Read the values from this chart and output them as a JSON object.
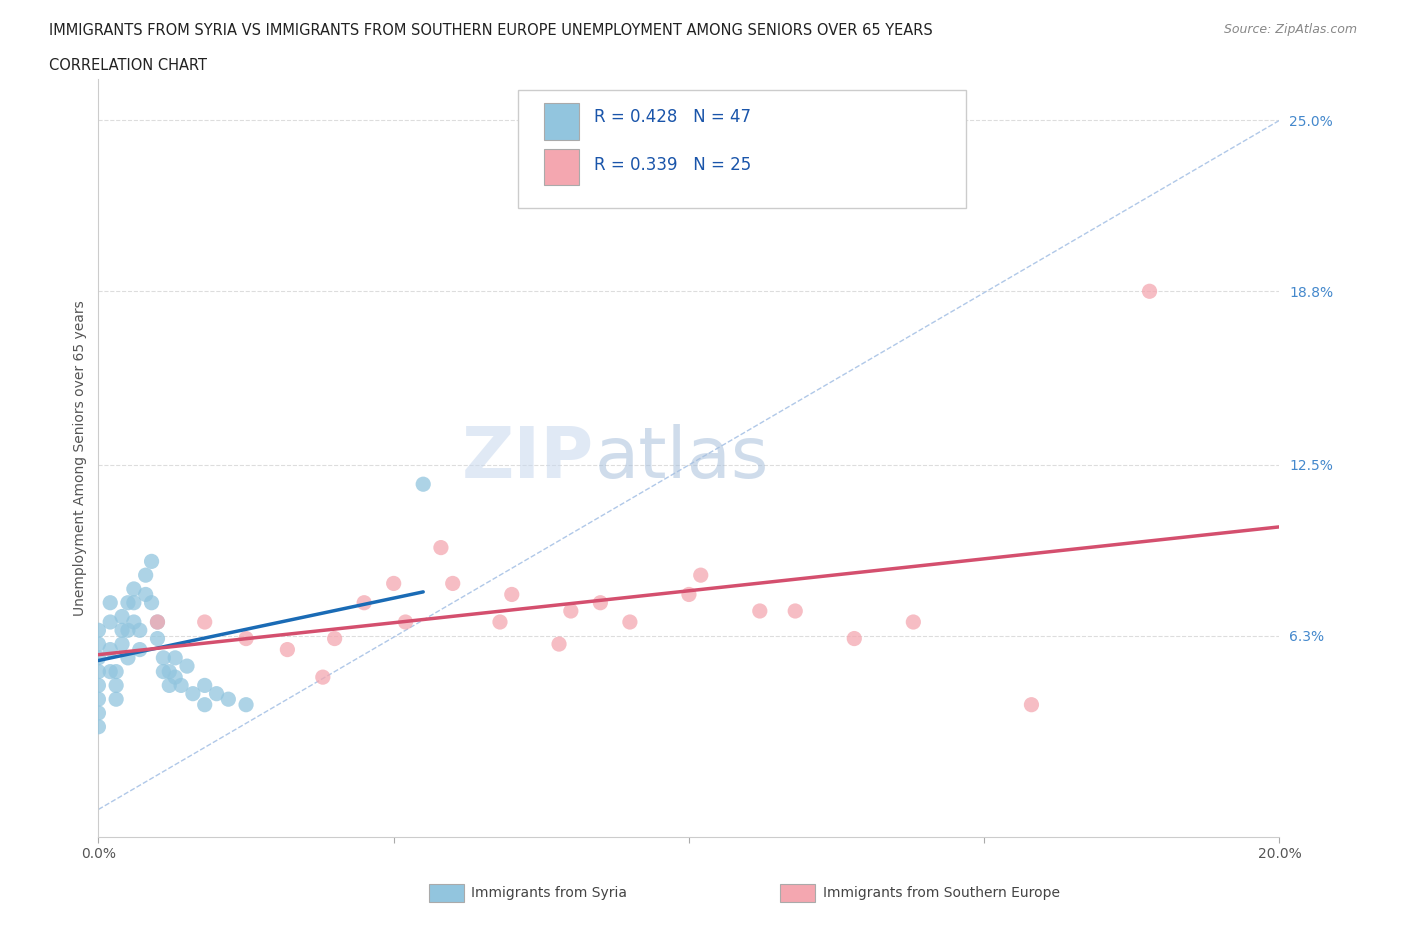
{
  "title_line1": "IMMIGRANTS FROM SYRIA VS IMMIGRANTS FROM SOUTHERN EUROPE UNEMPLOYMENT AMONG SENIORS OVER 65 YEARS",
  "title_line2": "CORRELATION CHART",
  "source_text": "Source: ZipAtlas.com",
  "ylabel": "Unemployment Among Seniors over 65 years",
  "xlim": [
    0.0,
    0.2
  ],
  "ylim": [
    -0.01,
    0.265
  ],
  "y_tick_labels_right": [
    "6.3%",
    "12.5%",
    "18.8%",
    "25.0%"
  ],
  "y_tick_positions_right": [
    0.063,
    0.125,
    0.188,
    0.25
  ],
  "R_syria": 0.428,
  "N_syria": 47,
  "R_southern": 0.339,
  "N_southern": 25,
  "color_syria": "#92c5de",
  "color_southern": "#f4a7b0",
  "color_syria_line": "#1a6bb5",
  "color_southern_line": "#d44f6e",
  "color_diagonal": "#b0c8e8",
  "legend_label_syria": "Immigrants from Syria",
  "legend_label_southern": "Immigrants from Southern Europe",
  "syria_points": [
    [
      0.0,
      0.055
    ],
    [
      0.0,
      0.06
    ],
    [
      0.0,
      0.065
    ],
    [
      0.0,
      0.05
    ],
    [
      0.0,
      0.045
    ],
    [
      0.0,
      0.04
    ],
    [
      0.0,
      0.035
    ],
    [
      0.0,
      0.03
    ],
    [
      0.002,
      0.05
    ],
    [
      0.002,
      0.058
    ],
    [
      0.002,
      0.068
    ],
    [
      0.002,
      0.075
    ],
    [
      0.003,
      0.05
    ],
    [
      0.003,
      0.04
    ],
    [
      0.003,
      0.045
    ],
    [
      0.004,
      0.06
    ],
    [
      0.004,
      0.065
    ],
    [
      0.004,
      0.07
    ],
    [
      0.005,
      0.055
    ],
    [
      0.005,
      0.065
    ],
    [
      0.005,
      0.075
    ],
    [
      0.006,
      0.068
    ],
    [
      0.006,
      0.075
    ],
    [
      0.006,
      0.08
    ],
    [
      0.007,
      0.058
    ],
    [
      0.007,
      0.065
    ],
    [
      0.008,
      0.078
    ],
    [
      0.008,
      0.085
    ],
    [
      0.009,
      0.075
    ],
    [
      0.009,
      0.09
    ],
    [
      0.01,
      0.068
    ],
    [
      0.01,
      0.062
    ],
    [
      0.011,
      0.055
    ],
    [
      0.011,
      0.05
    ],
    [
      0.012,
      0.05
    ],
    [
      0.012,
      0.045
    ],
    [
      0.013,
      0.048
    ],
    [
      0.013,
      0.055
    ],
    [
      0.014,
      0.045
    ],
    [
      0.015,
      0.052
    ],
    [
      0.016,
      0.042
    ],
    [
      0.018,
      0.038
    ],
    [
      0.018,
      0.045
    ],
    [
      0.02,
      0.042
    ],
    [
      0.022,
      0.04
    ],
    [
      0.025,
      0.038
    ],
    [
      0.055,
      0.118
    ]
  ],
  "southern_points": [
    [
      0.01,
      0.068
    ],
    [
      0.018,
      0.068
    ],
    [
      0.025,
      0.062
    ],
    [
      0.032,
      0.058
    ],
    [
      0.038,
      0.048
    ],
    [
      0.04,
      0.062
    ],
    [
      0.045,
      0.075
    ],
    [
      0.05,
      0.082
    ],
    [
      0.052,
      0.068
    ],
    [
      0.058,
      0.095
    ],
    [
      0.06,
      0.082
    ],
    [
      0.068,
      0.068
    ],
    [
      0.07,
      0.078
    ],
    [
      0.078,
      0.06
    ],
    [
      0.08,
      0.072
    ],
    [
      0.085,
      0.075
    ],
    [
      0.09,
      0.068
    ],
    [
      0.1,
      0.078
    ],
    [
      0.102,
      0.085
    ],
    [
      0.112,
      0.072
    ],
    [
      0.118,
      0.072
    ],
    [
      0.128,
      0.062
    ],
    [
      0.138,
      0.068
    ],
    [
      0.158,
      0.038
    ],
    [
      0.178,
      0.188
    ]
  ]
}
